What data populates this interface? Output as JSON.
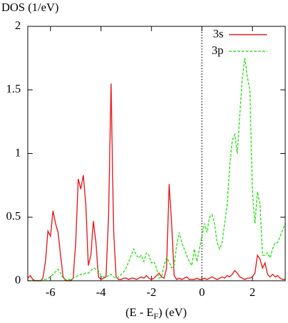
{
  "chart_data": {
    "type": "line",
    "ylabel": "DOS (1/eV)",
    "xlabel_parts": [
      "(E - E",
      "F",
      ") (eV)"
    ],
    "xlim": [
      -6.9,
      3.3
    ],
    "ylim": [
      0,
      2
    ],
    "xticks": [
      -6,
      -4,
      -2,
      0,
      2
    ],
    "yticks": [
      0,
      0.5,
      1,
      1.5,
      2
    ],
    "vline": 0,
    "x": [
      -6.9,
      -6.8,
      -6.7,
      -6.6,
      -6.5,
      -6.4,
      -6.3,
      -6.2,
      -6.1,
      -6.0,
      -5.9,
      -5.8,
      -5.7,
      -5.6,
      -5.5,
      -5.4,
      -5.3,
      -5.2,
      -5.1,
      -5.0,
      -4.9,
      -4.8,
      -4.7,
      -4.6,
      -4.5,
      -4.4,
      -4.3,
      -4.2,
      -4.1,
      -4.0,
      -3.9,
      -3.8,
      -3.7,
      -3.6,
      -3.5,
      -3.4,
      -3.3,
      -3.2,
      -3.1,
      -3.0,
      -2.9,
      -2.8,
      -2.7,
      -2.6,
      -2.5,
      -2.4,
      -2.3,
      -2.2,
      -2.1,
      -2.0,
      -1.9,
      -1.8,
      -1.7,
      -1.6,
      -1.5,
      -1.4,
      -1.3,
      -1.2,
      -1.1,
      -1.0,
      -0.9,
      -0.8,
      -0.7,
      -0.6,
      -0.5,
      -0.4,
      -0.3,
      -0.2,
      -0.1,
      0,
      0.1,
      0.2,
      0.3,
      0.4,
      0.5,
      0.6,
      0.7,
      0.8,
      0.9,
      1.0,
      1.1,
      1.2,
      1.3,
      1.4,
      1.5,
      1.6,
      1.7,
      1.8,
      1.9,
      2.0,
      2.1,
      2.2,
      2.3,
      2.4,
      2.5,
      2.6,
      2.7,
      2.8,
      2.9,
      3.0,
      3.1,
      3.2,
      3.3
    ],
    "series": [
      {
        "name": "3s",
        "color": "#e41a1c",
        "style": "solid",
        "values": [
          0.02,
          0.04,
          0.01,
          0,
          0,
          0,
          0.02,
          0.15,
          0.39,
          0.35,
          0.55,
          0.45,
          0.38,
          0.2,
          0.03,
          0,
          0,
          0,
          0.02,
          0.3,
          0.8,
          0.72,
          0.83,
          0.6,
          0.12,
          0.2,
          0.47,
          0.3,
          0.03,
          0.01,
          0.02,
          0.03,
          0.5,
          1.55,
          0.4,
          0.03,
          0.01,
          0.01,
          0.02,
          0.02,
          0.01,
          0.02,
          0.02,
          0.01,
          0.02,
          0.03,
          0.02,
          0.04,
          0.02,
          0.01,
          0.02,
          0.04,
          0.06,
          0.03,
          0.02,
          0.1,
          0.76,
          0.45,
          0.04,
          0.01,
          0.02,
          0.01,
          0.02,
          0.03,
          0.01,
          0.01,
          0.01,
          0.02,
          0.01,
          0.01,
          0.02,
          0.01,
          0.02,
          0.03,
          0.02,
          0.01,
          0.02,
          0.03,
          0.02,
          0.04,
          0.03,
          0.05,
          0.08,
          0.06,
          0.03,
          0.02,
          0.01,
          0.02,
          0.02,
          0.03,
          0.06,
          0.2,
          0.17,
          0.1,
          0.14,
          0.05,
          0.03,
          0.05,
          0.03,
          0.04,
          0.02,
          0.01,
          0.01
        ]
      },
      {
        "name": "3p",
        "color": "#33dd22",
        "style": "dashed",
        "values": [
          0,
          0,
          0,
          0,
          0,
          0,
          0.01,
          0.01,
          0.02,
          0.03,
          0.05,
          0.07,
          0.09,
          0.06,
          0.02,
          0.01,
          0.01,
          0.01,
          0.02,
          0.03,
          0.04,
          0.05,
          0.05,
          0.06,
          0.06,
          0.08,
          0.1,
          0.09,
          0.08,
          0.04,
          0.03,
          0.03,
          0.04,
          0.05,
          0.03,
          0.02,
          0.03,
          0.05,
          0.07,
          0.1,
          0.15,
          0.2,
          0.25,
          0.2,
          0.18,
          0.2,
          0.15,
          0.22,
          0.2,
          0.14,
          0.15,
          0.1,
          0.02,
          0.03,
          0.12,
          0.18,
          0.15,
          0.1,
          0.12,
          0.28,
          0.38,
          0.3,
          0.25,
          0.2,
          0.15,
          0.12,
          0.25,
          0.15,
          0.25,
          0.35,
          0.45,
          0.38,
          0.5,
          0.52,
          0.45,
          0.3,
          0.25,
          0.3,
          0.45,
          0.6,
          0.9,
          1.1,
          1.15,
          1.0,
          1.3,
          1.6,
          1.75,
          1.6,
          1.5,
          0.7,
          0.45,
          0.7,
          0.6,
          0.2,
          0.2,
          0.22,
          0.18,
          0.25,
          0.3,
          0.3,
          0.35,
          0.4,
          0.45
        ]
      }
    ]
  }
}
